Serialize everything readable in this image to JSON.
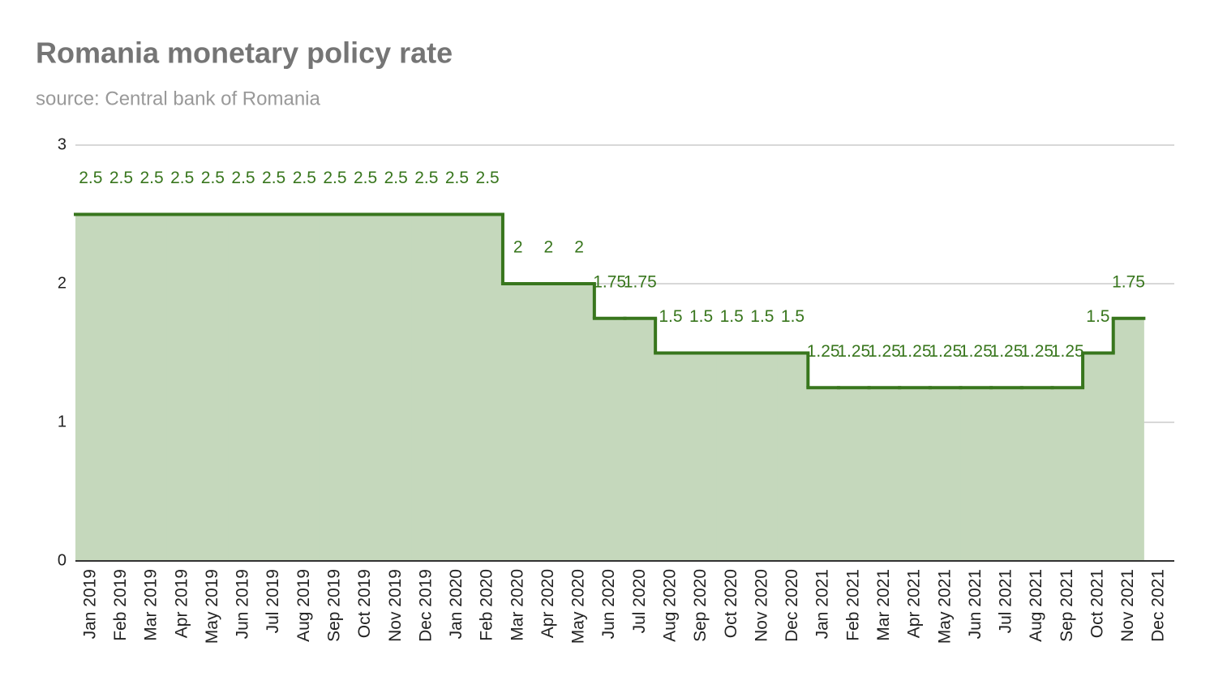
{
  "chart_data": {
    "type": "stepped-area",
    "title": "Romania monetary policy rate",
    "subtitle": "source: Central bank of Romania",
    "categories": [
      "Jan 2019",
      "Feb 2019",
      "Mar 2019",
      "Apr 2019",
      "May 2019",
      "Jun 2019",
      "Jul 2019",
      "Aug 2019",
      "Sep 2019",
      "Oct 2019",
      "Nov 2019",
      "Dec 2019",
      "Jan 2020",
      "Feb 2020",
      "Mar 2020",
      "Apr 2020",
      "May 2020",
      "Jun 2020",
      "Jul 2020",
      "Aug 2020",
      "Sep 2020",
      "Oct 2020",
      "Nov 2020",
      "Dec 2020",
      "Jan 2021",
      "Feb 2021",
      "Mar 2021",
      "Apr 2021",
      "May 2021",
      "Jun 2021",
      "Jul 2021",
      "Aug 2021",
      "Sep 2021",
      "Oct 2021",
      "Nov 2021",
      "Dec 2021"
    ],
    "values": [
      2.5,
      2.5,
      2.5,
      2.5,
      2.5,
      2.5,
      2.5,
      2.5,
      2.5,
      2.5,
      2.5,
      2.5,
      2.5,
      2.5,
      2,
      2,
      2,
      1.75,
      1.75,
      1.5,
      1.5,
      1.5,
      1.5,
      1.5,
      1.25,
      1.25,
      1.25,
      1.25,
      1.25,
      1.25,
      1.25,
      1.25,
      1.25,
      1.5,
      1.75,
      null
    ],
    "color": "#38761d",
    "fill": "#c5d8bc",
    "ylim": [
      0,
      3
    ],
    "yticks": [
      0,
      1,
      2,
      3
    ],
    "grid": true
  }
}
